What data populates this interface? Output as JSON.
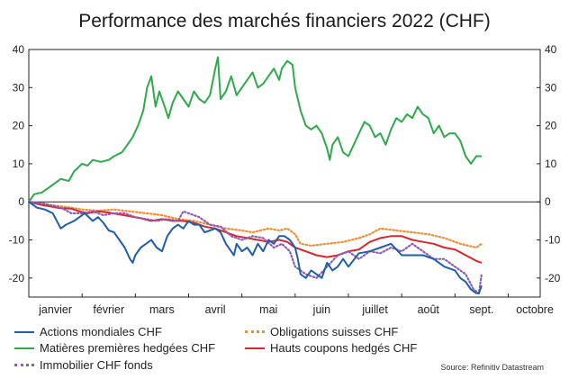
{
  "chart_data": {
    "type": "line",
    "title": "Performance des marchés financiers 2022 (CHF)",
    "source": "Source: Refinitiv Datastream",
    "months": [
      "janvier",
      "février",
      "mars",
      "avril",
      "mai",
      "juin",
      "juillet",
      "août",
      "sept.",
      "octobre"
    ],
    "ylim": [
      -25,
      40
    ],
    "yticks": [
      40,
      30,
      20,
      10,
      0,
      -10,
      -20
    ],
    "x_unit": "month index (0 = start of janvier)",
    "grid": false,
    "colors": {
      "actions": "#1f5ea8",
      "matieres": "#2eaa4a",
      "immobilier": "#8e5bb5",
      "obligations": "#ef8f35",
      "hauts": "#d7262e"
    },
    "series": [
      {
        "key": "matieres",
        "name": "Matières premières hedgées CHF",
        "style": "solid",
        "points": [
          [
            0,
            0
          ],
          [
            0.1,
            2
          ],
          [
            0.25,
            2.5
          ],
          [
            0.4,
            4
          ],
          [
            0.5,
            5
          ],
          [
            0.6,
            6
          ],
          [
            0.75,
            5.5
          ],
          [
            0.85,
            8
          ],
          [
            1.0,
            10
          ],
          [
            1.1,
            9.5
          ],
          [
            1.2,
            11
          ],
          [
            1.35,
            10.5
          ],
          [
            1.5,
            11
          ],
          [
            1.6,
            12
          ],
          [
            1.75,
            13
          ],
          [
            1.85,
            15
          ],
          [
            1.95,
            17
          ],
          [
            2.05,
            20
          ],
          [
            2.15,
            24
          ],
          [
            2.22,
            30
          ],
          [
            2.3,
            33
          ],
          [
            2.38,
            25
          ],
          [
            2.45,
            29
          ],
          [
            2.55,
            25
          ],
          [
            2.62,
            22
          ],
          [
            2.7,
            26
          ],
          [
            2.8,
            29
          ],
          [
            2.9,
            27
          ],
          [
            3.0,
            25
          ],
          [
            3.1,
            29
          ],
          [
            3.2,
            27
          ],
          [
            3.3,
            26
          ],
          [
            3.4,
            28
          ],
          [
            3.5,
            35
          ],
          [
            3.55,
            38
          ],
          [
            3.6,
            27
          ],
          [
            3.7,
            29
          ],
          [
            3.8,
            33
          ],
          [
            3.9,
            28
          ],
          [
            4.0,
            30
          ],
          [
            4.1,
            32
          ],
          [
            4.2,
            34
          ],
          [
            4.3,
            30
          ],
          [
            4.4,
            31
          ],
          [
            4.5,
            33
          ],
          [
            4.6,
            35
          ],
          [
            4.7,
            32
          ],
          [
            4.75,
            35
          ],
          [
            4.85,
            37
          ],
          [
            4.95,
            36
          ],
          [
            5.0,
            30
          ],
          [
            5.1,
            24
          ],
          [
            5.2,
            20
          ],
          [
            5.3,
            19
          ],
          [
            5.4,
            20
          ],
          [
            5.5,
            18
          ],
          [
            5.6,
            14
          ],
          [
            5.65,
            11
          ],
          [
            5.7,
            15
          ],
          [
            5.8,
            17
          ],
          [
            5.9,
            13
          ],
          [
            6.0,
            12
          ],
          [
            6.1,
            15
          ],
          [
            6.2,
            18
          ],
          [
            6.3,
            21
          ],
          [
            6.4,
            20
          ],
          [
            6.5,
            17
          ],
          [
            6.6,
            18
          ],
          [
            6.7,
            15
          ],
          [
            6.8,
            19
          ],
          [
            6.9,
            22
          ],
          [
            7.0,
            21
          ],
          [
            7.1,
            23
          ],
          [
            7.2,
            22
          ],
          [
            7.3,
            25
          ],
          [
            7.4,
            23
          ],
          [
            7.5,
            22
          ],
          [
            7.6,
            18
          ],
          [
            7.7,
            20
          ],
          [
            7.8,
            17
          ],
          [
            7.9,
            18
          ],
          [
            8.0,
            18
          ],
          [
            8.1,
            16
          ],
          [
            8.2,
            12
          ],
          [
            8.3,
            10
          ],
          [
            8.4,
            12
          ],
          [
            8.5,
            12
          ]
        ]
      },
      {
        "key": "obligations",
        "name": "Obligations suisses CHF",
        "style": "dotted",
        "points": [
          [
            0,
            0
          ],
          [
            0.2,
            -0.5
          ],
          [
            0.5,
            -1
          ],
          [
            0.8,
            -1.5
          ],
          [
            1.0,
            -2
          ],
          [
            1.3,
            -2.3
          ],
          [
            1.6,
            -2
          ],
          [
            1.9,
            -2.5
          ],
          [
            2.2,
            -3
          ],
          [
            2.5,
            -3.5
          ],
          [
            2.8,
            -4.5
          ],
          [
            3.1,
            -5
          ],
          [
            3.4,
            -6
          ],
          [
            3.7,
            -7
          ],
          [
            4.0,
            -7.5
          ],
          [
            4.2,
            -8
          ],
          [
            4.5,
            -7
          ],
          [
            4.7,
            -7.5
          ],
          [
            4.85,
            -7
          ],
          [
            5.0,
            -8.5
          ],
          [
            5.1,
            -11
          ],
          [
            5.3,
            -11.5
          ],
          [
            5.6,
            -11
          ],
          [
            5.9,
            -10.5
          ],
          [
            6.2,
            -9.5
          ],
          [
            6.4,
            -8.5
          ],
          [
            6.6,
            -7
          ],
          [
            6.9,
            -7.5
          ],
          [
            7.2,
            -8
          ],
          [
            7.5,
            -8.5
          ],
          [
            7.8,
            -9.5
          ],
          [
            8.1,
            -11
          ],
          [
            8.4,
            -12
          ],
          [
            8.5,
            -11
          ]
        ]
      },
      {
        "key": "hauts",
        "name": "Hauts coupons hedgés CHF",
        "style": "solid",
        "points": [
          [
            0,
            0
          ],
          [
            0.2,
            -0.7
          ],
          [
            0.4,
            -1.2
          ],
          [
            0.6,
            -1.7
          ],
          [
            0.8,
            -1.8
          ],
          [
            0.95,
            -2.5
          ],
          [
            1.1,
            -3
          ],
          [
            1.3,
            -2.5
          ],
          [
            1.5,
            -2.8
          ],
          [
            1.7,
            -3.3
          ],
          [
            1.9,
            -3.8
          ],
          [
            2.1,
            -4.3
          ],
          [
            2.3,
            -5
          ],
          [
            2.5,
            -4.5
          ],
          [
            2.7,
            -5
          ],
          [
            2.9,
            -5
          ],
          [
            3.1,
            -5.5
          ],
          [
            3.3,
            -6.5
          ],
          [
            3.5,
            -7
          ],
          [
            3.7,
            -8
          ],
          [
            3.9,
            -9
          ],
          [
            4.1,
            -9.5
          ],
          [
            4.3,
            -10
          ],
          [
            4.5,
            -10.5
          ],
          [
            4.7,
            -10
          ],
          [
            4.85,
            -10.5
          ],
          [
            5.0,
            -12
          ],
          [
            5.2,
            -13
          ],
          [
            5.4,
            -14
          ],
          [
            5.6,
            -14.5
          ],
          [
            5.8,
            -14
          ],
          [
            6.0,
            -13
          ],
          [
            6.2,
            -12.5
          ],
          [
            6.4,
            -10.5
          ],
          [
            6.6,
            -9.5
          ],
          [
            6.8,
            -9
          ],
          [
            7.0,
            -9
          ],
          [
            7.2,
            -10
          ],
          [
            7.4,
            -10.5
          ],
          [
            7.6,
            -11
          ],
          [
            7.8,
            -12
          ],
          [
            8.0,
            -12.5
          ],
          [
            8.2,
            -14
          ],
          [
            8.4,
            -15.5
          ],
          [
            8.5,
            -16
          ]
        ]
      },
      {
        "key": "immobilier",
        "name": "Immobilier CHF fonds",
        "style": "dotted",
        "points": [
          [
            0,
            0
          ],
          [
            0.3,
            -0.5
          ],
          [
            0.6,
            -1.5
          ],
          [
            0.8,
            -3
          ],
          [
            1.0,
            -3
          ],
          [
            1.2,
            -2.5
          ],
          [
            1.4,
            -3.5
          ],
          [
            1.6,
            -3
          ],
          [
            1.8,
            -3
          ],
          [
            2.0,
            -4
          ],
          [
            2.2,
            -4.5
          ],
          [
            2.4,
            -5
          ],
          [
            2.6,
            -4.5
          ],
          [
            2.8,
            -5
          ],
          [
            2.9,
            -2.5
          ],
          [
            3.0,
            -3
          ],
          [
            3.2,
            -4
          ],
          [
            3.4,
            -6
          ],
          [
            3.6,
            -6.5
          ],
          [
            3.8,
            -9
          ],
          [
            4.0,
            -10
          ],
          [
            4.2,
            -9
          ],
          [
            4.4,
            -9.5
          ],
          [
            4.6,
            -12
          ],
          [
            4.75,
            -11
          ],
          [
            4.9,
            -13
          ],
          [
            5.0,
            -17
          ],
          [
            5.2,
            -19
          ],
          [
            5.4,
            -20
          ],
          [
            5.6,
            -17
          ],
          [
            5.8,
            -14
          ],
          [
            6.0,
            -13
          ],
          [
            6.2,
            -15
          ],
          [
            6.4,
            -13
          ],
          [
            6.6,
            -13.5
          ],
          [
            6.8,
            -12
          ],
          [
            7.0,
            -13
          ],
          [
            7.2,
            -11
          ],
          [
            7.4,
            -13
          ],
          [
            7.6,
            -15
          ],
          [
            7.8,
            -15
          ],
          [
            8.0,
            -17
          ],
          [
            8.2,
            -19
          ],
          [
            8.35,
            -23
          ],
          [
            8.45,
            -24
          ],
          [
            8.5,
            -19
          ]
        ]
      },
      {
        "key": "actions",
        "name": "Actions mondiales CHF",
        "style": "solid",
        "points": [
          [
            0,
            0
          ],
          [
            0.15,
            -1.5
          ],
          [
            0.3,
            -2
          ],
          [
            0.45,
            -3
          ],
          [
            0.6,
            -7
          ],
          [
            0.7,
            -6
          ],
          [
            0.85,
            -5
          ],
          [
            0.95,
            -4
          ],
          [
            1.05,
            -3
          ],
          [
            1.2,
            -5
          ],
          [
            1.3,
            -4
          ],
          [
            1.4,
            -5.5
          ],
          [
            1.5,
            -7.5
          ],
          [
            1.6,
            -8
          ],
          [
            1.7,
            -10
          ],
          [
            1.8,
            -12
          ],
          [
            1.9,
            -15
          ],
          [
            1.95,
            -16
          ],
          [
            2.0,
            -14
          ],
          [
            2.1,
            -12
          ],
          [
            2.2,
            -11
          ],
          [
            2.3,
            -10
          ],
          [
            2.4,
            -12
          ],
          [
            2.5,
            -13
          ],
          [
            2.6,
            -9
          ],
          [
            2.7,
            -7
          ],
          [
            2.8,
            -6
          ],
          [
            2.9,
            -7
          ],
          [
            3.0,
            -5
          ],
          [
            3.1,
            -6
          ],
          [
            3.2,
            -6
          ],
          [
            3.3,
            -8
          ],
          [
            3.4,
            -7.5
          ],
          [
            3.5,
            -7
          ],
          [
            3.6,
            -8
          ],
          [
            3.7,
            -11
          ],
          [
            3.8,
            -13
          ],
          [
            3.85,
            -14
          ],
          [
            3.9,
            -11
          ],
          [
            4.0,
            -13
          ],
          [
            4.1,
            -12
          ],
          [
            4.2,
            -14
          ],
          [
            4.3,
            -11
          ],
          [
            4.4,
            -13
          ],
          [
            4.5,
            -10
          ],
          [
            4.6,
            -11
          ],
          [
            4.7,
            -9
          ],
          [
            4.8,
            -9
          ],
          [
            4.9,
            -10
          ],
          [
            5.0,
            -12
          ],
          [
            5.05,
            -15
          ],
          [
            5.1,
            -19
          ],
          [
            5.2,
            -20
          ],
          [
            5.3,
            -18
          ],
          [
            5.4,
            -19
          ],
          [
            5.5,
            -20
          ],
          [
            5.6,
            -16
          ],
          [
            5.7,
            -18
          ],
          [
            5.8,
            -17
          ],
          [
            5.9,
            -15
          ],
          [
            6.0,
            -17
          ],
          [
            6.2,
            -13.5
          ],
          [
            6.4,
            -13
          ],
          [
            6.6,
            -12
          ],
          [
            6.8,
            -11
          ],
          [
            7.0,
            -14
          ],
          [
            7.2,
            -14
          ],
          [
            7.4,
            -14
          ],
          [
            7.6,
            -15
          ],
          [
            7.8,
            -17
          ],
          [
            8.0,
            -18
          ],
          [
            8.1,
            -20
          ],
          [
            8.2,
            -21
          ],
          [
            8.3,
            -23
          ],
          [
            8.4,
            -24
          ],
          [
            8.45,
            -24
          ],
          [
            8.5,
            -22
          ]
        ]
      }
    ],
    "legend": [
      {
        "key": "actions",
        "label": "Actions mondiales CHF",
        "style": "solid"
      },
      {
        "key": "obligations",
        "label": "Obligations suisses CHF",
        "style": "dotted"
      },
      {
        "key": "matieres",
        "label": "Matières premières hedgées CHF",
        "style": "solid"
      },
      {
        "key": "hauts",
        "label": "Hauts coupons hedgés CHF",
        "style": "solid"
      },
      {
        "key": "immobilier",
        "label": "Immobilier CHF fonds",
        "style": "dotted"
      }
    ]
  }
}
